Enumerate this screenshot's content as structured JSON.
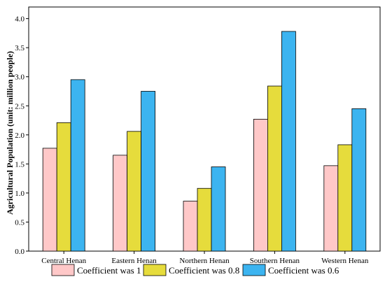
{
  "chart_data": {
    "type": "bar",
    "title": "",
    "xlabel": "",
    "ylabel": "Agricultural Population (unit: million people)",
    "categories": [
      "Central Henan",
      "Eastern Henan",
      "Northern Henan",
      "Southern Henan",
      "Western Henan"
    ],
    "series": [
      {
        "name": "Coefficient was 1",
        "color": "#ffc8c8",
        "values": [
          1.77,
          1.65,
          0.86,
          2.27,
          1.47
        ]
      },
      {
        "name": "Coefficient was 0.8",
        "color": "#e6dc3c",
        "values": [
          2.21,
          2.06,
          1.08,
          2.84,
          1.83
        ]
      },
      {
        "name": "Coefficient was 0.6",
        "color": "#3cb4f0",
        "values": [
          2.95,
          2.75,
          1.45,
          3.78,
          2.45
        ]
      }
    ],
    "ylim": [
      0,
      4.2
    ],
    "yticks": [
      "0.0",
      "0.5",
      "1.0",
      "1.5",
      "2.0",
      "2.5",
      "3.0",
      "3.5",
      "4.0"
    ],
    "grid": false,
    "legend_position": "bottom"
  }
}
